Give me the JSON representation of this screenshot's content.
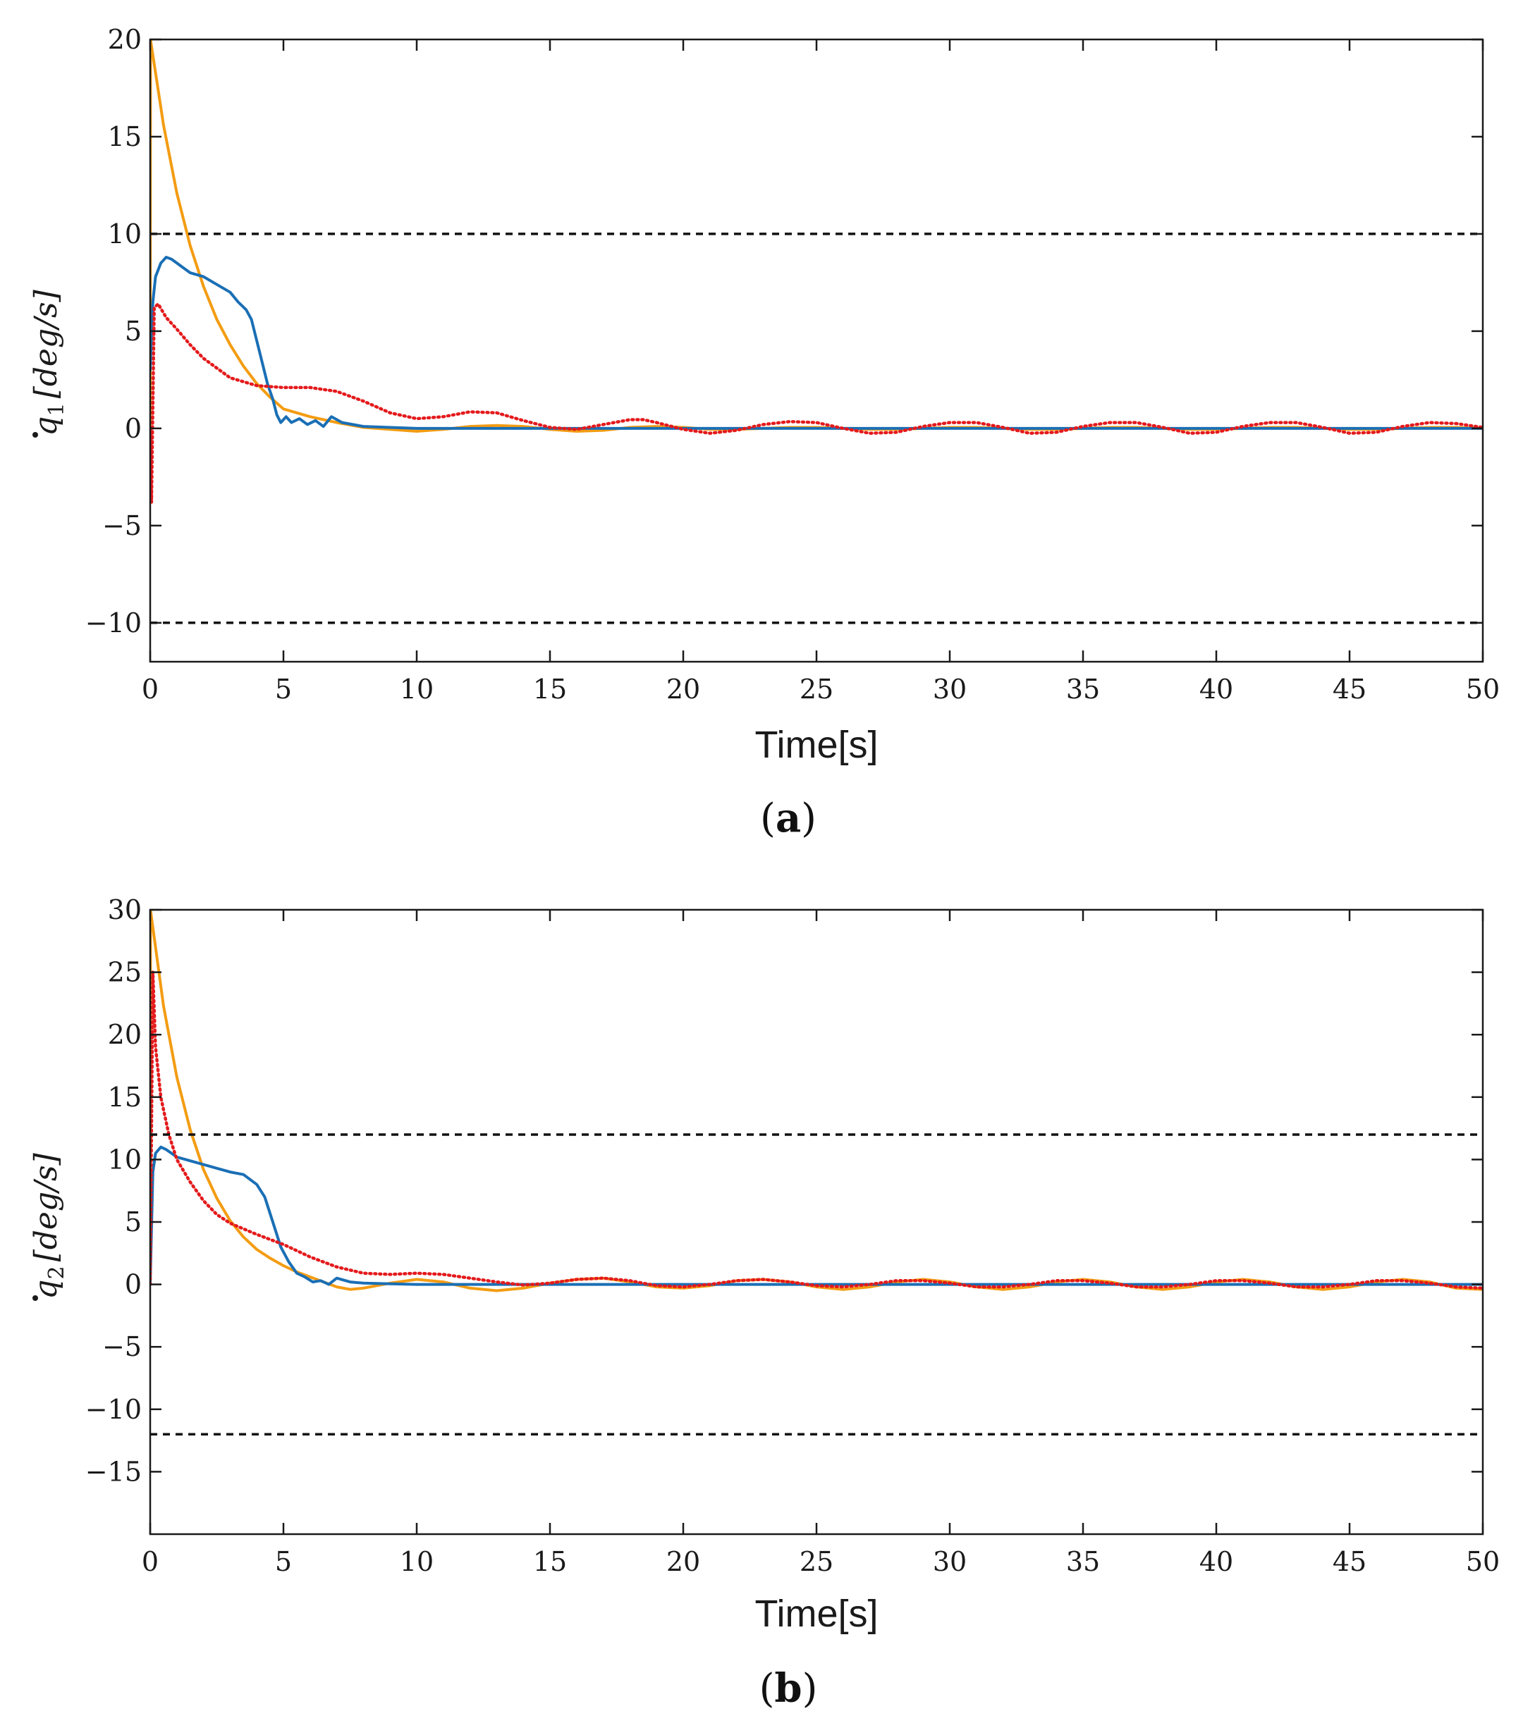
{
  "chart_data": [
    {
      "type": "line",
      "panel_label": "a",
      "xlabel": "Time[s]",
      "ylabel": {
        "symbol": "q",
        "subscript": "1",
        "unit": "[deg/s]"
      },
      "xlim": [
        0,
        50
      ],
      "ylim": [
        -12,
        20
      ],
      "xticks": [
        0,
        5,
        10,
        15,
        20,
        25,
        30,
        35,
        40,
        45,
        50
      ],
      "yticks": [
        -10,
        -5,
        0,
        5,
        10,
        15,
        20
      ],
      "series": [
        {
          "name": "orange",
          "color": "#f39c12",
          "style": "solid",
          "x": [
            0,
            0.01,
            0.5,
            1,
            1.5,
            2,
            2.5,
            3,
            3.5,
            4,
            4.5,
            5,
            6,
            7,
            8,
            9,
            10,
            11,
            12,
            13,
            14,
            15,
            16,
            17,
            18,
            19,
            20,
            21,
            22,
            23,
            24,
            25,
            26,
            27,
            28,
            29,
            30,
            31,
            32,
            33,
            34,
            35,
            36,
            37,
            38,
            39,
            40,
            41,
            42,
            43,
            44,
            45,
            46,
            47,
            48,
            49,
            50
          ],
          "values": [
            0,
            20,
            15.6,
            12.1,
            9.4,
            7.3,
            5.6,
            4.3,
            3.2,
            2.3,
            1.6,
            1.0,
            0.6,
            0.3,
            0.05,
            -0.05,
            -0.15,
            -0.05,
            0.1,
            0.15,
            0.1,
            -0.05,
            -0.15,
            -0.1,
            0.05,
            0.1,
            0.05,
            -0.05,
            -0.05,
            0.0,
            0.05,
            0.05,
            0.0,
            -0.05,
            -0.05,
            0.0,
            0.05,
            0.05,
            0.0,
            -0.05,
            -0.05,
            0.0,
            0.05,
            0.05,
            0.0,
            -0.05,
            -0.05,
            0.0,
            0.05,
            0.05,
            0.0,
            -0.05,
            -0.05,
            0.0,
            0.05,
            0.05,
            0.0
          ]
        },
        {
          "name": "blue",
          "color": "#1a6fb5",
          "style": "solid",
          "x": [
            0,
            0.1,
            0.2,
            0.4,
            0.6,
            0.8,
            1,
            1.5,
            2,
            2.5,
            3,
            3.3,
            3.6,
            3.8,
            4,
            4.2,
            4.4,
            4.6,
            4.75,
            4.9,
            5.1,
            5.3,
            5.6,
            5.9,
            6.2,
            6.5,
            6.8,
            7.2,
            8,
            9,
            10,
            50
          ],
          "values": [
            3.0,
            6.5,
            7.8,
            8.5,
            8.8,
            8.7,
            8.5,
            8.0,
            7.8,
            7.4,
            7.0,
            6.5,
            6.1,
            5.6,
            4.5,
            3.4,
            2.3,
            1.5,
            0.7,
            0.3,
            0.6,
            0.3,
            0.5,
            0.2,
            0.4,
            0.1,
            0.6,
            0.3,
            0.1,
            0.05,
            0.0,
            0.0
          ]
        },
        {
          "name": "red",
          "color": "#e41a1c",
          "style": "dotted",
          "x": [
            0,
            0.05,
            0.15,
            0.3,
            0.6,
            1,
            1.5,
            2,
            3,
            4,
            5,
            6,
            6.5,
            7,
            8,
            9,
            10,
            11,
            12,
            13,
            14,
            15,
            16,
            17,
            18,
            18.5,
            19,
            20,
            21,
            22,
            23,
            24,
            25,
            26,
            27,
            28,
            29,
            30,
            31,
            32,
            33,
            34,
            35,
            36,
            37,
            38,
            39,
            40,
            41,
            42,
            43,
            44,
            45,
            46,
            47,
            48,
            49,
            50
          ],
          "values": [
            0,
            -3.8,
            6.2,
            6.4,
            5.7,
            5.1,
            4.3,
            3.6,
            2.6,
            2.2,
            2.1,
            2.1,
            2.0,
            1.9,
            1.4,
            0.8,
            0.5,
            0.6,
            0.85,
            0.8,
            0.4,
            0.05,
            -0.05,
            0.2,
            0.45,
            0.45,
            0.3,
            -0.05,
            -0.25,
            -0.1,
            0.2,
            0.35,
            0.3,
            0.0,
            -0.25,
            -0.2,
            0.1,
            0.3,
            0.3,
            0.05,
            -0.25,
            -0.2,
            0.1,
            0.3,
            0.3,
            0.05,
            -0.25,
            -0.2,
            0.1,
            0.3,
            0.3,
            0.05,
            -0.25,
            -0.2,
            0.1,
            0.3,
            0.25,
            0.05
          ]
        },
        {
          "name": "upper bound",
          "color": "#111111",
          "style": "dashed",
          "x": [
            0,
            50
          ],
          "values": [
            10,
            10
          ]
        },
        {
          "name": "lower bound",
          "color": "#111111",
          "style": "dashed",
          "x": [
            0,
            50
          ],
          "values": [
            -10,
            -10
          ]
        }
      ]
    },
    {
      "type": "line",
      "panel_label": "b",
      "xlabel": "Time[s]",
      "ylabel": {
        "symbol": "q",
        "subscript": "2",
        "unit": "[deg/s]"
      },
      "xlim": [
        0,
        50
      ],
      "ylim": [
        -20,
        30
      ],
      "xticks": [
        0,
        5,
        10,
        15,
        20,
        25,
        30,
        35,
        40,
        45,
        50
      ],
      "yticks": [
        -15,
        -10,
        -5,
        0,
        5,
        10,
        15,
        20,
        25,
        30
      ],
      "series": [
        {
          "name": "orange",
          "color": "#f39c12",
          "style": "solid",
          "x": [
            0,
            0.01,
            0.5,
            1,
            1.5,
            2,
            2.5,
            3,
            3.5,
            4,
            4.5,
            5,
            5.5,
            6,
            6.5,
            7,
            7.5,
            8,
            9,
            10,
            11,
            12,
            13,
            14,
            15,
            16,
            17,
            18,
            19,
            20,
            21,
            22,
            23,
            24,
            25,
            26,
            27,
            28,
            29,
            30,
            31,
            32,
            33,
            34,
            35,
            36,
            37,
            38,
            39,
            40,
            41,
            42,
            43,
            44,
            45,
            46,
            47,
            48,
            49,
            50
          ],
          "values": [
            0,
            30,
            22.3,
            16.6,
            12.4,
            9.2,
            6.9,
            5.1,
            3.8,
            2.8,
            2.1,
            1.5,
            1.0,
            0.6,
            0.2,
            -0.2,
            -0.4,
            -0.3,
            0.1,
            0.4,
            0.2,
            -0.3,
            -0.5,
            -0.3,
            0.1,
            0.4,
            0.5,
            0.2,
            -0.2,
            -0.3,
            -0.1,
            0.3,
            0.4,
            0.2,
            -0.2,
            -0.4,
            -0.2,
            0.2,
            0.4,
            0.2,
            -0.2,
            -0.4,
            -0.2,
            0.2,
            0.4,
            0.2,
            -0.2,
            -0.4,
            -0.2,
            0.2,
            0.4,
            0.2,
            -0.2,
            -0.4,
            -0.2,
            0.2,
            0.4,
            0.2,
            -0.3,
            -0.4
          ]
        },
        {
          "name": "blue",
          "color": "#1a6fb5",
          "style": "solid",
          "x": [
            0,
            0.1,
            0.2,
            0.4,
            0.6,
            0.8,
            1,
            1.5,
            2,
            2.5,
            3,
            3.5,
            4,
            4.3,
            4.6,
            4.9,
            5.2,
            5.5,
            5.8,
            6.1,
            6.4,
            6.7,
            7,
            7.5,
            8,
            9,
            10,
            50
          ],
          "values": [
            0.0,
            9.0,
            10.5,
            11.0,
            10.8,
            10.5,
            10.2,
            9.9,
            9.6,
            9.3,
            9.0,
            8.8,
            8.0,
            7.0,
            5.0,
            3.0,
            1.8,
            0.9,
            0.6,
            0.2,
            0.3,
            0.0,
            0.5,
            0.2,
            0.1,
            0.05,
            0.0,
            0.0
          ]
        },
        {
          "name": "red",
          "color": "#e41a1c",
          "style": "dotted",
          "x": [
            0,
            0.1,
            0.2,
            0.4,
            0.7,
            1,
            1.5,
            2,
            2.5,
            3,
            4,
            5,
            6,
            7,
            8,
            9,
            10,
            11,
            12,
            13,
            14,
            15,
            16,
            17,
            18,
            19,
            20,
            21,
            22,
            23,
            24,
            25,
            26,
            27,
            28,
            29,
            30,
            31,
            32,
            33,
            34,
            35,
            36,
            37,
            38,
            39,
            40,
            41,
            42,
            43,
            44,
            45,
            46,
            47,
            48,
            49,
            50
          ],
          "values": [
            0,
            25,
            19,
            15,
            12,
            10,
            8.2,
            6.7,
            5.6,
            4.9,
            4.0,
            3.2,
            2.2,
            1.4,
            0.9,
            0.8,
            0.9,
            0.8,
            0.5,
            0.2,
            -0.05,
            0.1,
            0.4,
            0.5,
            0.3,
            -0.1,
            -0.2,
            0.0,
            0.3,
            0.4,
            0.2,
            -0.1,
            -0.2,
            0.0,
            0.3,
            0.3,
            0.1,
            -0.2,
            -0.2,
            0.0,
            0.3,
            0.3,
            0.1,
            -0.2,
            -0.2,
            0.0,
            0.3,
            0.3,
            0.1,
            -0.2,
            -0.2,
            0.0,
            0.3,
            0.3,
            0.1,
            -0.2,
            -0.3
          ]
        },
        {
          "name": "upper bound",
          "color": "#111111",
          "style": "dashed",
          "x": [
            0,
            50
          ],
          "values": [
            12,
            12
          ]
        },
        {
          "name": "lower bound",
          "color": "#111111",
          "style": "dashed",
          "x": [
            0,
            50
          ],
          "values": [
            -12,
            -12
          ]
        }
      ]
    }
  ]
}
